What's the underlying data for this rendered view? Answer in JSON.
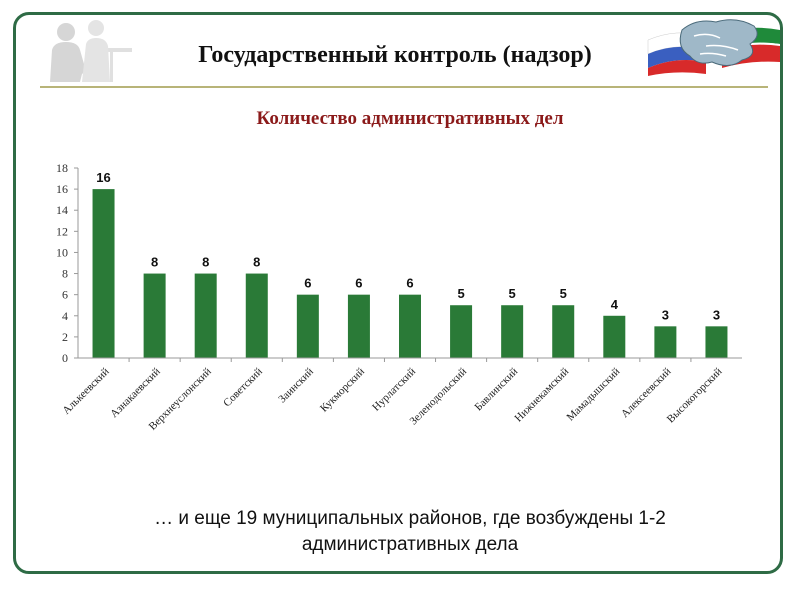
{
  "header": {
    "title": "Государственный контроль (надзор)"
  },
  "colors": {
    "frame": "#2e6b45",
    "bar": "#2a7a37",
    "chart_title": "#8b1a1a",
    "header_rule": "#b8b478"
  },
  "icons": {
    "silhouette": "business-people-silhouette-icon",
    "flag_map": "russia-tatarstan-flag-map-icon"
  },
  "chart_data": {
    "type": "bar",
    "title": "Количество административных дел",
    "xlabel": "",
    "ylabel": "",
    "ylim": [
      0,
      18
    ],
    "yticks": [
      0,
      2,
      4,
      6,
      8,
      10,
      12,
      14,
      16,
      18
    ],
    "grid": false,
    "legend": "none",
    "data_labels": true,
    "categories": [
      "Алькеевский",
      "Азнакаевский",
      "Верхнеуслонский",
      "Советский",
      "Заинский",
      "Кукморский",
      "Нурлатский",
      "Зеленодольский",
      "Бавлинский",
      "Нижнекамский",
      "Мамадышский",
      "Алексеевский",
      "Высокогорский"
    ],
    "values": [
      16,
      8,
      8,
      8,
      6,
      6,
      6,
      5,
      5,
      5,
      4,
      3,
      3
    ]
  },
  "footnote": {
    "line1": "… и еще 19 муниципальных районов, где возбуждены 1-2",
    "line2": "административных дела"
  }
}
